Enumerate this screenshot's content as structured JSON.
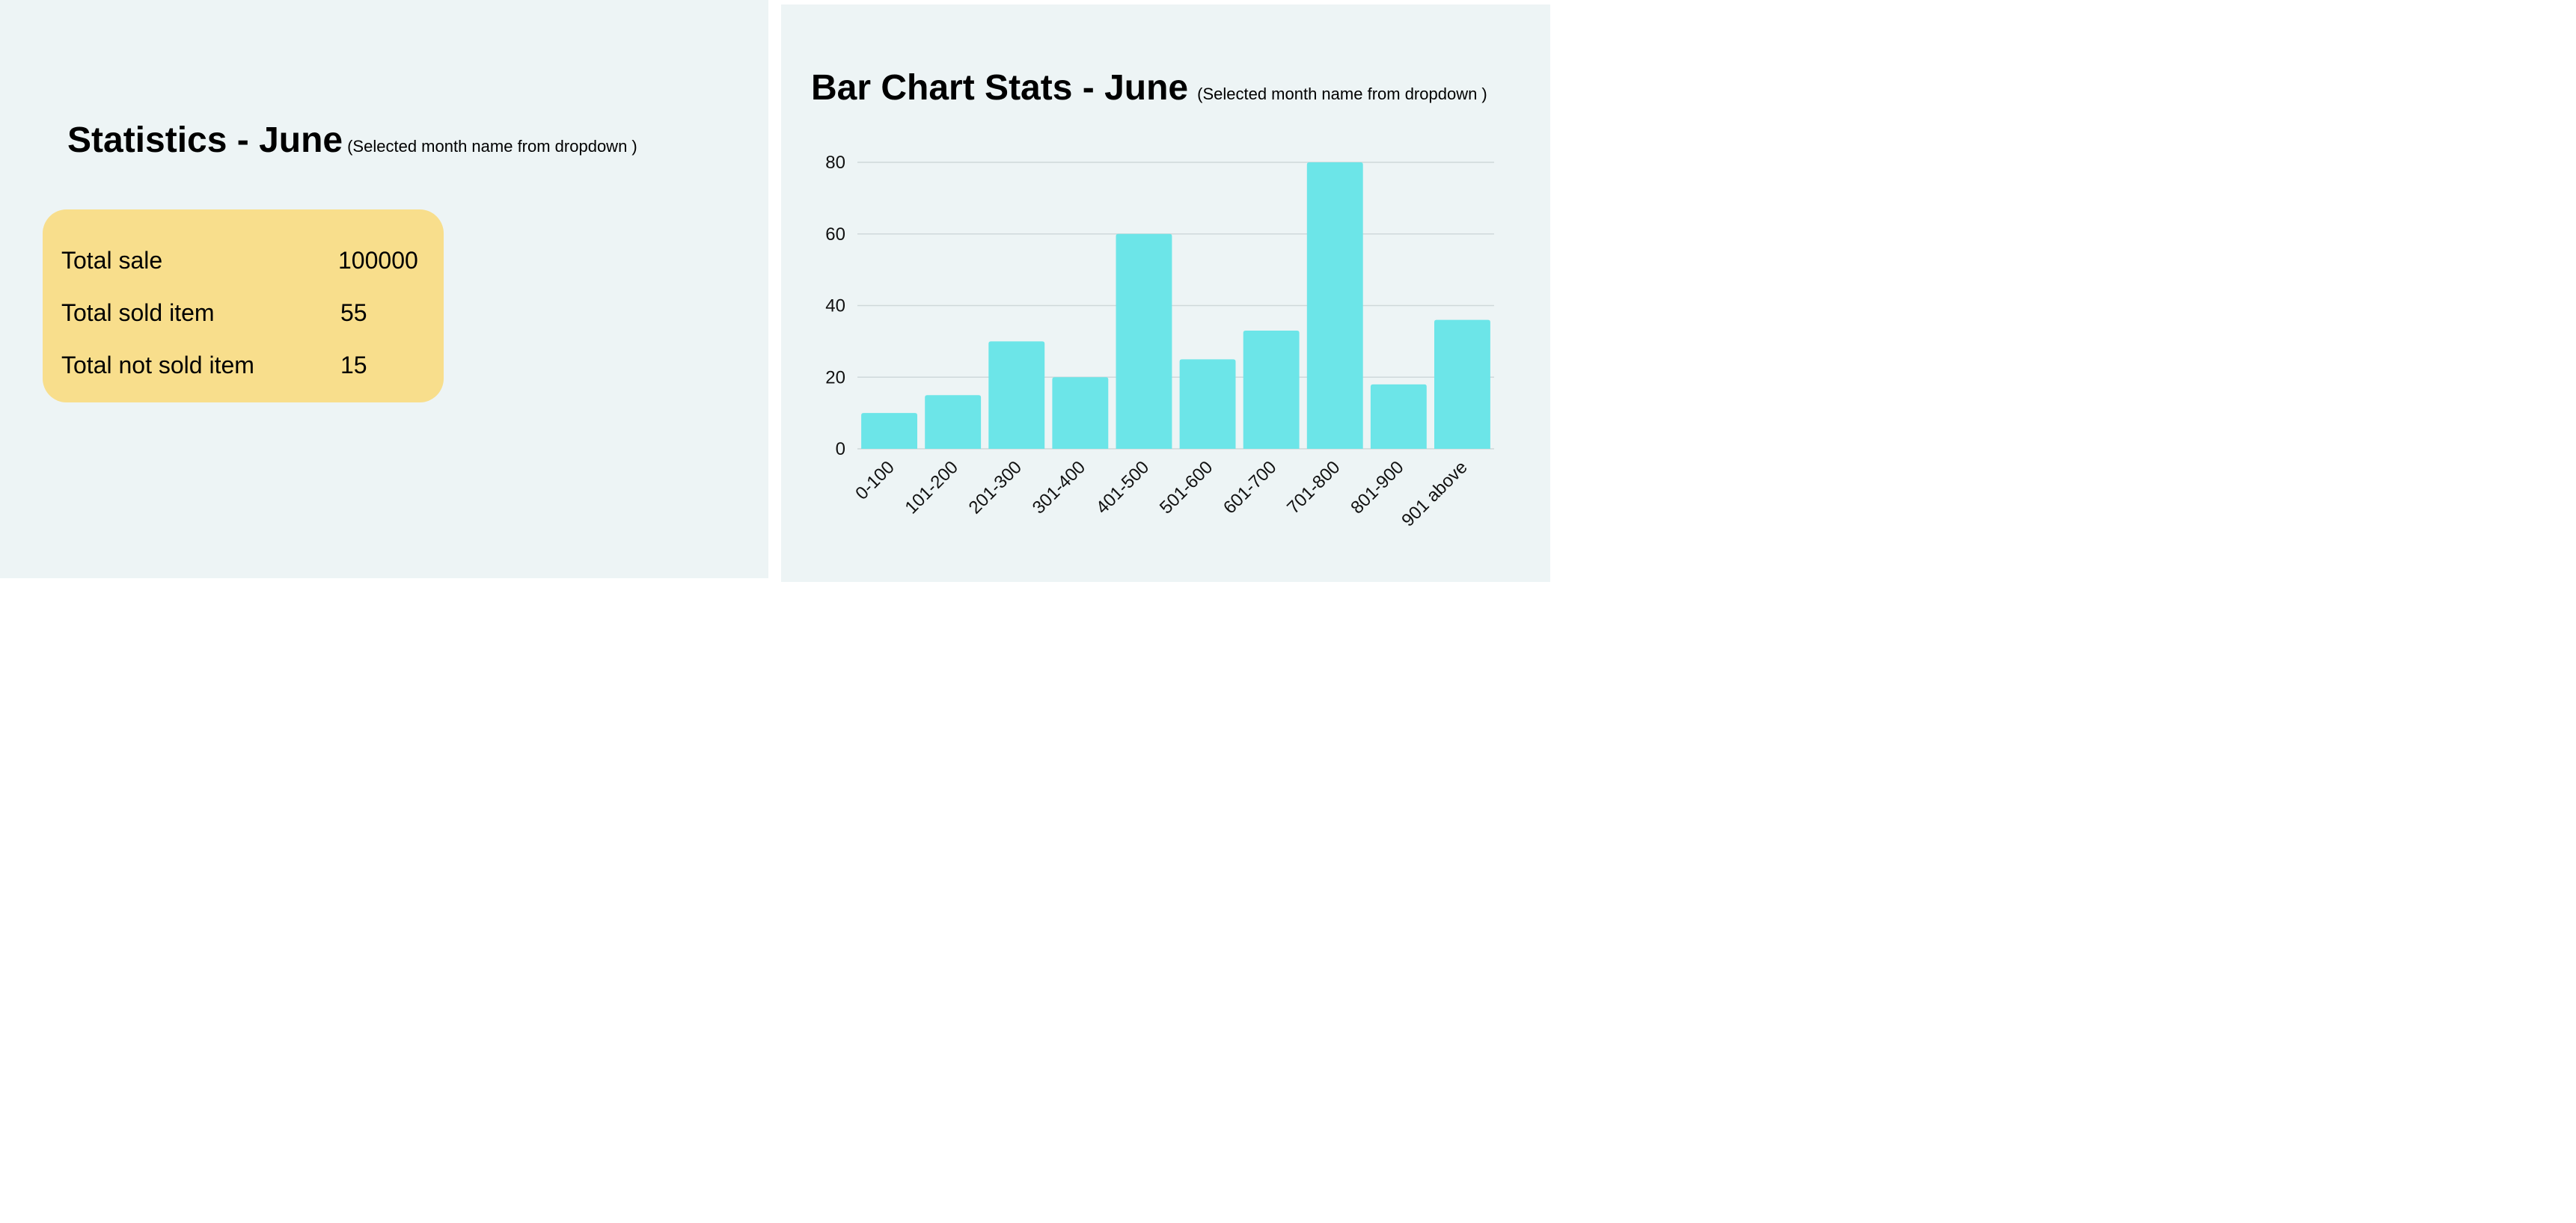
{
  "stats": {
    "title": "Statistics  - June",
    "note": "(Selected month name from dropdown )",
    "rows": [
      {
        "label": "Total sale",
        "value": "100000"
      },
      {
        "label": "Total sold item",
        "value": "55"
      },
      {
        "label": "Total not sold item",
        "value": "15"
      }
    ]
  },
  "chart_panel": {
    "title": "Bar Chart Stats  - June",
    "note": "(Selected month name from dropdown )"
  },
  "colors": {
    "panel_bg": "#edf4f5",
    "card_bg": "#f8de8c",
    "bar": "#6ce5e8",
    "grid": "#cfd8da"
  },
  "chart_data": {
    "type": "bar",
    "categories": [
      "0-100",
      "101-200",
      "201-300",
      "301-400",
      "401-500",
      "501-600",
      "601-700",
      "701-800",
      "801-900",
      "901 above"
    ],
    "values": [
      10,
      15,
      30,
      20,
      60,
      25,
      33,
      80,
      18,
      36
    ],
    "ylim": [
      0,
      80
    ],
    "yticks": [
      0,
      20,
      40,
      60,
      80
    ],
    "grid": true
  }
}
